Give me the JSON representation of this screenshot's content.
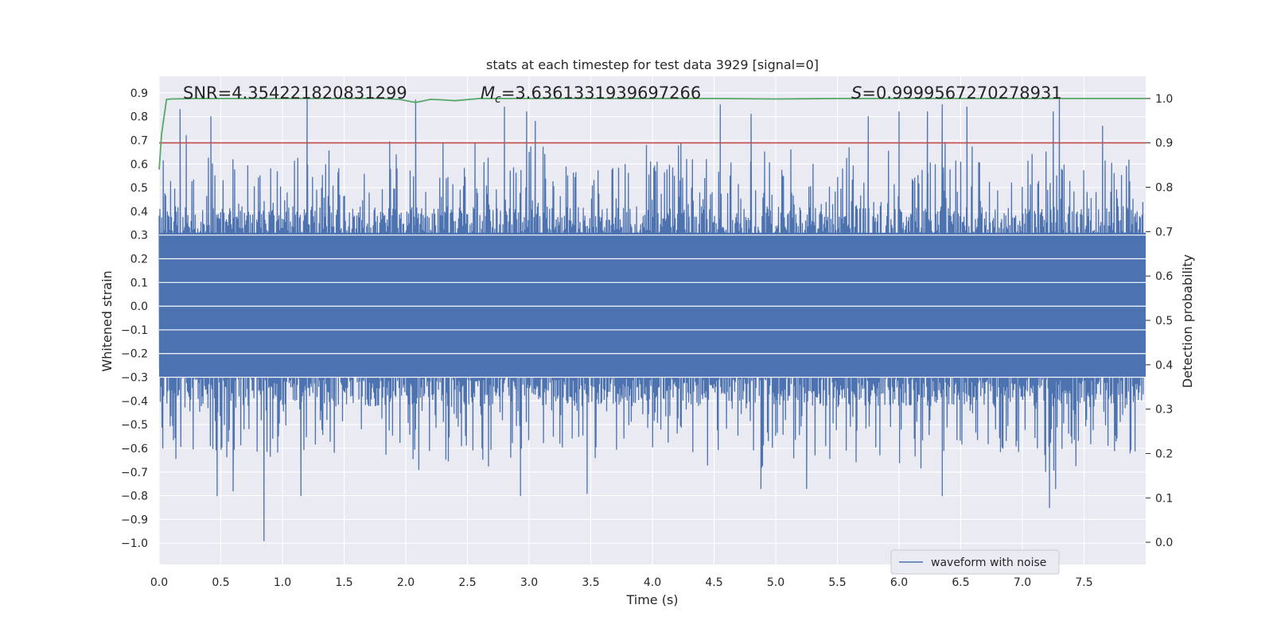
{
  "chart_data": {
    "type": "line",
    "title": "stats at each timestep for test data 3929 [signal=0]",
    "xlabel": "Time (s)",
    "ylabel_left": "Whitened strain",
    "ylabel_right": "Detection probability",
    "xlim": [
      0.0,
      8.0
    ],
    "ylim_left": [
      -1.09,
      0.97
    ],
    "ylim_right": [
      -0.05,
      1.05
    ],
    "x_ticks": [
      "0.0",
      "0.5",
      "1.0",
      "1.5",
      "2.0",
      "2.5",
      "3.0",
      "3.5",
      "4.0",
      "4.5",
      "5.0",
      "5.5",
      "6.0",
      "6.5",
      "7.0",
      "7.5"
    ],
    "x_tick_values": [
      0.0,
      0.5,
      1.0,
      1.5,
      2.0,
      2.5,
      3.0,
      3.5,
      4.0,
      4.5,
      5.0,
      5.5,
      6.0,
      6.5,
      7.0,
      7.5
    ],
    "y_left_ticks": [
      "0.9",
      "0.8",
      "0.7",
      "0.6",
      "0.5",
      "0.4",
      "0.3",
      "0.2",
      "0.1",
      "0.0",
      "−0.1",
      "−0.2",
      "−0.3",
      "−0.4",
      "−0.5",
      "−0.6",
      "−0.7",
      "−0.8",
      "−0.9",
      "−1.0"
    ],
    "y_left_tick_values": [
      0.9,
      0.8,
      0.7,
      0.6,
      0.5,
      0.4,
      0.3,
      0.2,
      0.1,
      0.0,
      -0.1,
      -0.2,
      -0.3,
      -0.4,
      -0.5,
      -0.6,
      -0.7,
      -0.8,
      -0.9,
      -1.0
    ],
    "y_right_ticks": [
      "1.0",
      "0.9",
      "0.8",
      "0.7",
      "0.6",
      "0.5",
      "0.4",
      "0.3",
      "0.2",
      "0.1",
      "0.0"
    ],
    "y_right_tick_values": [
      1.0,
      0.9,
      0.8,
      0.7,
      0.6,
      0.5,
      0.4,
      0.3,
      0.2,
      0.1,
      0.0
    ],
    "threshold": 0.9,
    "annotations": {
      "snr": "SNR=4.354221820831299",
      "mc_symbol": "M",
      "mc_subscript": "c",
      "mc_value": "=3.6361331939697266",
      "s_symbol": "S",
      "s_value": "=0.9999567270278931"
    },
    "legend": {
      "label": "waveform with noise",
      "placement": "lower-right"
    },
    "series": [
      {
        "name": "waveform with noise",
        "axis": "left",
        "color": "#4c72b0",
        "description": "whitened strain noise, dense core about ±0.35 with spikes up to 0.88 and down to -0.99",
        "spikes_up": [
          [
            0.17,
            0.83
          ],
          [
            0.22,
            0.72
          ],
          [
            0.42,
            0.8
          ],
          [
            1.2,
            0.88
          ],
          [
            2.08,
            0.87
          ],
          [
            2.8,
            0.84
          ],
          [
            2.98,
            0.82
          ],
          [
            3.05,
            0.78
          ],
          [
            4.55,
            0.85
          ],
          [
            4.8,
            0.81
          ],
          [
            5.75,
            0.8
          ],
          [
            6.0,
            0.82
          ],
          [
            6.23,
            0.82
          ],
          [
            6.35,
            0.85
          ],
          [
            6.55,
            0.84
          ],
          [
            7.25,
            0.82
          ],
          [
            7.3,
            0.88
          ],
          [
            7.65,
            0.76
          ]
        ],
        "spikes_down": [
          [
            0.47,
            -0.8
          ],
          [
            0.6,
            -0.78
          ],
          [
            0.85,
            -0.99
          ],
          [
            1.15,
            -0.8
          ],
          [
            2.93,
            -0.8
          ],
          [
            3.47,
            -0.79
          ],
          [
            4.88,
            -0.77
          ],
          [
            5.25,
            -0.77
          ],
          [
            6.35,
            -0.8
          ],
          [
            7.22,
            -0.85
          ],
          [
            7.27,
            -0.77
          ]
        ],
        "seed": 3929
      },
      {
        "name": "detection probability",
        "axis": "right",
        "color": "#55a868",
        "x": [
          0.0,
          0.02,
          0.06,
          0.1,
          0.3,
          0.6,
          0.9,
          1.2,
          1.5,
          1.8,
          1.95,
          2.08,
          2.2,
          2.3,
          2.4,
          2.6,
          3.0,
          3.5,
          4.0,
          4.5,
          5.0,
          5.5,
          6.0,
          6.5,
          7.0,
          7.5,
          8.0
        ],
        "y": [
          0.84,
          0.92,
          0.998,
          0.999,
          1.0,
          1.0,
          1.0,
          1.0,
          1.0,
          1.0,
          0.998,
          0.991,
          0.998,
          0.997,
          0.995,
          1.0,
          1.0,
          1.0,
          1.0,
          1.0,
          0.999,
          1.0,
          1.0,
          1.0,
          1.0,
          1.0,
          1.0
        ]
      }
    ],
    "threshold_color": "#c44e52",
    "background_color": "#eaeaf2"
  }
}
